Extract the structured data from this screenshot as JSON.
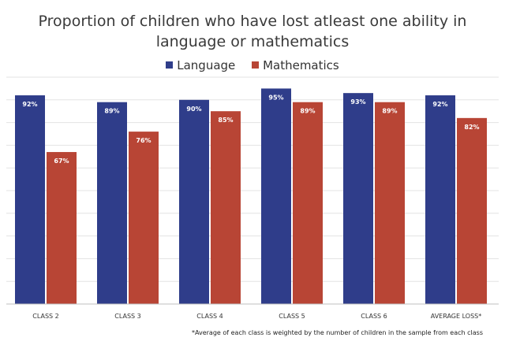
{
  "chart_data": {
    "type": "bar",
    "title_lines": [
      "Proportion of children who have lost atleast one ability in",
      "language or mathematics"
    ],
    "categories": [
      "CLASS 2",
      "CLASS 3",
      "CLASS 4",
      "CLASS 5",
      "CLASS 6",
      "AVERAGE LOSS*"
    ],
    "series": [
      {
        "name": "Language",
        "values": [
          92,
          89,
          90,
          95,
          93,
          92
        ],
        "labels": [
          "92%",
          "89%",
          "90%",
          "95%",
          "93%",
          "92%"
        ],
        "color": "#2f3d8a"
      },
      {
        "name": "Mathematics",
        "values": [
          67,
          76,
          85,
          89,
          89,
          82
        ],
        "labels": [
          "67%",
          "76%",
          "85%",
          "89%",
          "89%",
          "82%"
        ],
        "color": "#b84535"
      }
    ],
    "ylim": [
      0,
      100
    ],
    "grid": true,
    "legend_position": "top",
    "footnote": "*Average of each class is weighted by the number of children in the sample from each class"
  }
}
